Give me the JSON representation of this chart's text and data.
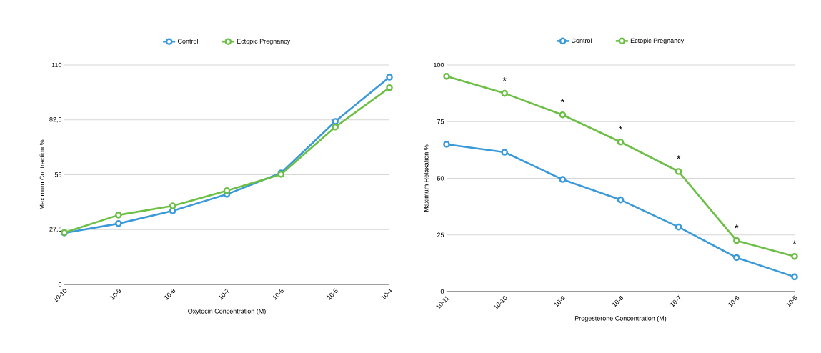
{
  "chart_data": [
    {
      "type": "line",
      "xlabel": "Oxytocin Concentration (M)",
      "ylabel": "Maximum Contraction %",
      "categories": [
        "10-10",
        "10-9",
        "10-8",
        "10-7",
        "10-6",
        "10-5",
        "10-4"
      ],
      "series": [
        {
          "name": "Control",
          "color": "#3a9ad9",
          "values": [
            25.8,
            30.5,
            36.9,
            45.2,
            55.9,
            81.7,
            103.9
          ]
        },
        {
          "name": "Ectopic Pregnancy",
          "color": "#6cbf45",
          "values": [
            26,
            34.8,
            39.4,
            47,
            55.2,
            78.9,
            98.6
          ]
        }
      ],
      "ylim": [
        0,
        110
      ],
      "yticks": [
        0,
        {
          "value": 27.5,
          "label": "27,5"
        },
        55,
        {
          "value": 82.5,
          "label": "82,5"
        },
        110
      ],
      "grid": "y",
      "legend": "top",
      "marker": "circle",
      "line_style": "solid"
    },
    {
      "type": "line",
      "xlabel": "Progesterone Concentration (M)",
      "ylabel": "Maximum Relaxation %",
      "categories": [
        "10-11",
        "10-10",
        "10-9",
        "10-8",
        "10-7",
        "10-6",
        "10-5"
      ],
      "series": [
        {
          "name": "Control",
          "color": "#3a9ad9",
          "values": [
            65,
            61.5,
            49.5,
            40.5,
            28.5,
            15,
            6.5
          ]
        },
        {
          "name": "Ectopic Pregnancy",
          "color": "#6cbf45",
          "values": [
            95,
            87.5,
            78,
            66,
            53,
            22.5,
            15.5
          ]
        }
      ],
      "ylim": [
        0,
        100
      ],
      "yticks": [
        0,
        25,
        50,
        75,
        100
      ],
      "annotations": [
        "*",
        "*",
        "*",
        "*",
        "*",
        "*"
      ],
      "grid": "y",
      "legend": "top",
      "marker": "circle",
      "line_style": "solid"
    }
  ]
}
